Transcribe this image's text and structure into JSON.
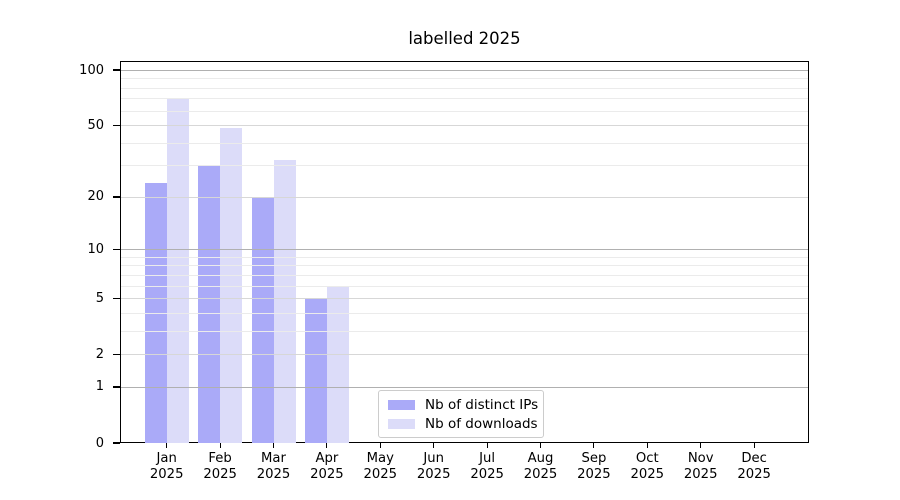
{
  "chart_data": {
    "type": "bar",
    "title": "labelled 2025",
    "categories": [
      "Jan",
      "Feb",
      "Mar",
      "Apr",
      "May",
      "Jun",
      "Jul",
      "Aug",
      "Sep",
      "Oct",
      "Nov",
      "Dec"
    ],
    "x_tick_second_line": "2025",
    "series": [
      {
        "name": "Nb of distinct IPs",
        "color": "#aaaaf8",
        "values": [
          24,
          30,
          20,
          5,
          0,
          0,
          0,
          0,
          0,
          0,
          0,
          0
        ]
      },
      {
        "name": "Nb of downloads",
        "color": "#dcdcf9",
        "values": [
          70,
          48,
          32,
          6,
          0,
          0,
          0,
          0,
          0,
          0,
          0,
          0
        ]
      }
    ],
    "yscale": "log1p",
    "ylim": [
      0,
      113
    ],
    "y_ticks": [
      0,
      1,
      2,
      5,
      10,
      20,
      50,
      100
    ],
    "y_mid_gridlines": [
      2,
      5,
      20,
      50
    ],
    "y_decade_gridlines": [
      1,
      10,
      100
    ],
    "y_minor_gridlines": [
      3,
      4,
      6,
      7,
      8,
      9,
      30,
      40,
      60,
      70,
      80,
      90
    ],
    "grid": true,
    "legend_position": "lower center",
    "colors": {
      "grid_decade": "#b0b0b0",
      "grid_mid": "#d7d7d7",
      "grid_minor": "#ebebeb",
      "spine": "#000000",
      "background": "#ffffff"
    }
  }
}
